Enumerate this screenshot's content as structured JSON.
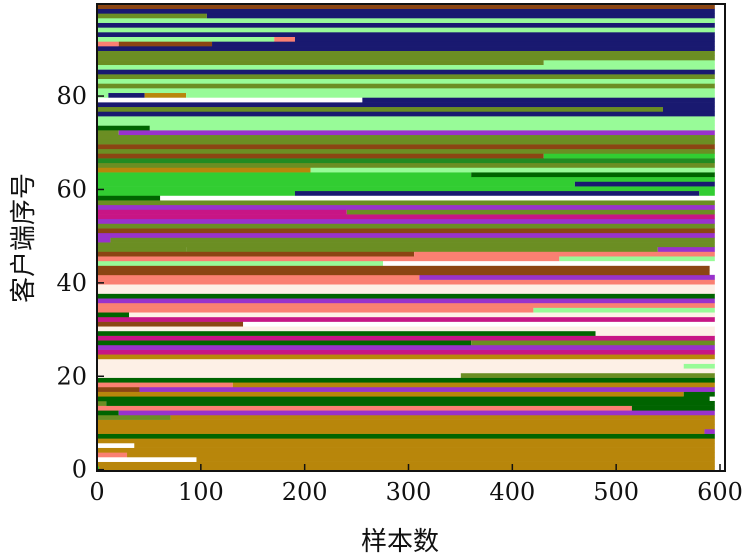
{
  "chart_data": {
    "type": "bar",
    "orientation": "horizontal-stacked",
    "title": "",
    "xlabel": "样本数",
    "ylabel": "客户端序号",
    "xlim": [
      0,
      600
    ],
    "ylim": [
      0,
      100
    ],
    "x_ticks": [
      "0",
      "100",
      "200",
      "300",
      "400",
      "500",
      "600"
    ],
    "y_ticks": [
      "0",
      "20",
      "40",
      "60",
      "80"
    ],
    "x_tick_values": [
      0,
      100,
      200,
      300,
      400,
      500,
      600
    ],
    "y_tick_values": [
      0,
      20,
      40,
      60,
      80
    ],
    "grid": false,
    "legend": "none",
    "colors": {
      "goldenrod": "#b8860b",
      "olive": "#6b8e23",
      "lightgreen": "#98fb98",
      "lime": "#32cd32",
      "darkgreen": "#006400",
      "navy": "#191970",
      "salmon": "#fa8072",
      "seashell": "#fdf0e6",
      "brown": "#8b4513",
      "purple": "#9932cc",
      "magenta": "#c71585",
      "white": "#ffffff",
      "forestgreen": "#228b22"
    },
    "clients": [
      {
        "id": 0,
        "segments": [
          {
            "end": 1,
            "color": "lime"
          },
          {
            "end": 595,
            "color": "goldenrod"
          }
        ]
      },
      {
        "id": 1,
        "segments": [
          {
            "end": 595,
            "color": "goldenrod"
          }
        ]
      },
      {
        "id": 2,
        "segments": [
          {
            "end": 95,
            "color": "white"
          },
          {
            "end": 595,
            "color": "goldenrod"
          }
        ]
      },
      {
        "id": 3,
        "segments": [
          {
            "end": 28,
            "color": "salmon"
          },
          {
            "end": 595,
            "color": "goldenrod"
          }
        ]
      },
      {
        "id": 4,
        "segments": [
          {
            "end": 595,
            "color": "goldenrod"
          }
        ]
      },
      {
        "id": 5,
        "segments": [
          {
            "end": 35,
            "color": "white"
          },
          {
            "end": 595,
            "color": "goldenrod"
          }
        ]
      },
      {
        "id": 6,
        "segments": [
          {
            "end": 595,
            "color": "goldenrod"
          }
        ]
      },
      {
        "id": 7,
        "segments": [
          {
            "end": 595,
            "color": "darkgreen"
          }
        ]
      },
      {
        "id": 8,
        "segments": [
          {
            "end": 585,
            "color": "goldenrod"
          },
          {
            "end": 595,
            "color": "purple"
          }
        ]
      },
      {
        "id": 9,
        "segments": [
          {
            "end": 595,
            "color": "goldenrod"
          }
        ]
      },
      {
        "id": 10,
        "segments": [
          {
            "end": 595,
            "color": "goldenrod"
          }
        ]
      },
      {
        "id": 11,
        "segments": [
          {
            "end": 70,
            "color": "olive"
          },
          {
            "end": 595,
            "color": "goldenrod"
          }
        ]
      },
      {
        "id": 12,
        "segments": [
          {
            "end": 20,
            "color": "darkgreen"
          },
          {
            "end": 595,
            "color": "purple"
          }
        ]
      },
      {
        "id": 13,
        "segments": [
          {
            "end": 515,
            "color": "salmon"
          },
          {
            "end": 595,
            "color": "darkgreen"
          }
        ]
      },
      {
        "id": 14,
        "segments": [
          {
            "end": 8,
            "color": "olive"
          },
          {
            "end": 595,
            "color": "darkgreen"
          }
        ]
      },
      {
        "id": 15,
        "segments": [
          {
            "end": 590,
            "color": "darkgreen"
          }
        ]
      },
      {
        "id": 16,
        "segments": [
          {
            "end": 565,
            "color": "goldenrod"
          },
          {
            "end": 595,
            "color": "darkgreen"
          }
        ]
      },
      {
        "id": 17,
        "segments": [
          {
            "end": 40,
            "color": "brown"
          },
          {
            "end": 595,
            "color": "purple"
          }
        ]
      },
      {
        "id": 18,
        "segments": [
          {
            "end": 130,
            "color": "salmon"
          },
          {
            "end": 595,
            "color": "goldenrod"
          }
        ]
      },
      {
        "id": 19,
        "segments": [
          {
            "end": 595,
            "color": "darkgreen"
          }
        ]
      },
      {
        "id": 20,
        "segments": [
          {
            "end": 350,
            "color": "seashell"
          },
          {
            "end": 595,
            "color": "olive"
          }
        ]
      },
      {
        "id": 21,
        "segments": [
          {
            "end": 595,
            "color": "seashell"
          }
        ]
      },
      {
        "id": 22,
        "segments": [
          {
            "end": 565,
            "color": "seashell"
          },
          {
            "end": 595,
            "color": "lightgreen"
          }
        ]
      },
      {
        "id": 23,
        "segments": [
          {
            "end": 595,
            "color": "seashell"
          }
        ]
      },
      {
        "id": 24,
        "segments": [
          {
            "end": 595,
            "color": "goldenrod"
          }
        ]
      },
      {
        "id": 25,
        "segments": [
          {
            "end": 595,
            "color": "magenta"
          }
        ]
      },
      {
        "id": 26,
        "segments": [
          {
            "end": 595,
            "color": "purple"
          }
        ]
      },
      {
        "id": 27,
        "segments": [
          {
            "end": 360,
            "color": "darkgreen"
          },
          {
            "end": 595,
            "color": "olive"
          }
        ]
      },
      {
        "id": 28,
        "segments": [
          {
            "end": 595,
            "color": "magenta"
          }
        ]
      },
      {
        "id": 29,
        "segments": [
          {
            "end": 480,
            "color": "darkgreen"
          },
          {
            "end": 595,
            "color": "seashell"
          }
        ]
      },
      {
        "id": 30,
        "segments": [
          {
            "end": 595,
            "color": "seashell"
          }
        ]
      },
      {
        "id": 31,
        "segments": [
          {
            "end": 140,
            "color": "brown"
          },
          {
            "end": 595,
            "color": "white"
          }
        ]
      },
      {
        "id": 32,
        "segments": [
          {
            "end": 595,
            "color": "magenta"
          }
        ]
      },
      {
        "id": 33,
        "segments": [
          {
            "end": 30,
            "color": "darkgreen"
          },
          {
            "end": 595,
            "color": "seashell"
          }
        ]
      },
      {
        "id": 34,
        "segments": [
          {
            "end": 420,
            "color": "salmon"
          },
          {
            "end": 595,
            "color": "lightgreen"
          }
        ]
      },
      {
        "id": 35,
        "segments": [
          {
            "end": 595,
            "color": "salmon"
          }
        ]
      },
      {
        "id": 36,
        "segments": [
          {
            "end": 595,
            "color": "purple"
          }
        ]
      },
      {
        "id": 37,
        "segments": [
          {
            "end": 595,
            "color": "darkgreen"
          }
        ]
      },
      {
        "id": 38,
        "segments": [
          {
            "end": 595,
            "color": "seashell"
          }
        ]
      },
      {
        "id": 39,
        "segments": [
          {
            "end": 595,
            "color": "seashell"
          }
        ]
      },
      {
        "id": 40,
        "segments": [
          {
            "end": 595,
            "color": "salmon"
          }
        ]
      },
      {
        "id": 41,
        "segments": [
          {
            "end": 310,
            "color": "salmon"
          },
          {
            "end": 595,
            "color": "purple"
          }
        ]
      },
      {
        "id": 42,
        "segments": [
          {
            "end": 590,
            "color": "brown"
          }
        ]
      },
      {
        "id": 43,
        "segments": [
          {
            "end": 590,
            "color": "brown"
          }
        ]
      },
      {
        "id": 44,
        "segments": [
          {
            "end": 275,
            "color": "lightgreen"
          },
          {
            "end": 595,
            "color": "white"
          }
        ]
      },
      {
        "id": 45,
        "segments": [
          {
            "end": 445,
            "color": "salmon"
          },
          {
            "end": 595,
            "color": "lightgreen"
          }
        ]
      },
      {
        "id": 46,
        "segments": [
          {
            "end": 305,
            "color": "brown"
          },
          {
            "end": 595,
            "color": "salmon"
          }
        ]
      },
      {
        "id": 47,
        "segments": [
          {
            "end": 85,
            "color": "olive"
          },
          {
            "end": 540,
            "color": "olive"
          },
          {
            "end": 595,
            "color": "purple"
          }
        ]
      },
      {
        "id": 48,
        "segments": [
          {
            "end": 595,
            "color": "olive"
          }
        ]
      },
      {
        "id": 49,
        "segments": [
          {
            "end": 12,
            "color": "purple"
          },
          {
            "end": 595,
            "color": "olive"
          }
        ]
      },
      {
        "id": 50,
        "segments": [
          {
            "end": 595,
            "color": "purple"
          }
        ]
      },
      {
        "id": 51,
        "segments": [
          {
            "end": 595,
            "color": "brown"
          }
        ]
      },
      {
        "id": 52,
        "segments": [
          {
            "end": 595,
            "color": "olive"
          }
        ]
      },
      {
        "id": 53,
        "segments": [
          {
            "end": 595,
            "color": "purple"
          }
        ]
      },
      {
        "id": 54,
        "segments": [
          {
            "end": 595,
            "color": "magenta"
          }
        ]
      },
      {
        "id": 55,
        "segments": [
          {
            "end": 240,
            "color": "magenta"
          },
          {
            "end": 595,
            "color": "olive"
          }
        ]
      },
      {
        "id": 56,
        "segments": [
          {
            "end": 595,
            "color": "purple"
          }
        ]
      },
      {
        "id": 57,
        "segments": [
          {
            "end": 595,
            "color": "olive"
          }
        ]
      },
      {
        "id": 58,
        "segments": [
          {
            "end": 60,
            "color": "darkgreen"
          },
          {
            "end": 595,
            "color": "white"
          }
        ]
      },
      {
        "id": 59,
        "segments": [
          {
            "end": 190,
            "color": "lime"
          },
          {
            "end": 580,
            "color": "navy"
          },
          {
            "end": 595,
            "color": "lime"
          }
        ]
      },
      {
        "id": 60,
        "segments": [
          {
            "end": 595,
            "color": "lime"
          }
        ]
      },
      {
        "id": 61,
        "segments": [
          {
            "end": 460,
            "color": "lime"
          },
          {
            "end": 595,
            "color": "navy"
          }
        ]
      },
      {
        "id": 62,
        "segments": [
          {
            "end": 595,
            "color": "lime"
          }
        ]
      },
      {
        "id": 63,
        "segments": [
          {
            "end": 360,
            "color": "lime"
          },
          {
            "end": 595,
            "color": "darkgreen"
          }
        ]
      },
      {
        "id": 64,
        "segments": [
          {
            "end": 205,
            "color": "goldenrod"
          },
          {
            "end": 595,
            "color": "lightgreen"
          }
        ]
      },
      {
        "id": 65,
        "segments": [
          {
            "end": 595,
            "color": "olive"
          }
        ]
      },
      {
        "id": 66,
        "segments": [
          {
            "end": 595,
            "color": "forestgreen"
          }
        ]
      },
      {
        "id": 67,
        "segments": [
          {
            "end": 430,
            "color": "brown"
          },
          {
            "end": 595,
            "color": "lime"
          }
        ]
      },
      {
        "id": 68,
        "segments": [
          {
            "end": 595,
            "color": "olive"
          }
        ]
      },
      {
        "id": 69,
        "segments": [
          {
            "end": 595,
            "color": "brown"
          }
        ]
      },
      {
        "id": 70,
        "segments": [
          {
            "end": 595,
            "color": "olive"
          }
        ]
      },
      {
        "id": 71,
        "segments": [
          {
            "end": 595,
            "color": "olive"
          }
        ]
      },
      {
        "id": 72,
        "segments": [
          {
            "end": 20,
            "color": "olive"
          },
          {
            "end": 595,
            "color": "purple"
          }
        ]
      },
      {
        "id": 73,
        "segments": [
          {
            "end": 50,
            "color": "darkgreen"
          },
          {
            "end": 595,
            "color": "lightgreen"
          }
        ]
      },
      {
        "id": 74,
        "segments": [
          {
            "end": 595,
            "color": "lightgreen"
          }
        ]
      },
      {
        "id": 75,
        "segments": [
          {
            "end": 595,
            "color": "lightgreen"
          }
        ]
      },
      {
        "id": 76,
        "segments": [
          {
            "end": 595,
            "color": "navy"
          }
        ]
      },
      {
        "id": 77,
        "segments": [
          {
            "end": 545,
            "color": "olive"
          },
          {
            "end": 595,
            "color": "navy"
          }
        ]
      },
      {
        "id": 78,
        "segments": [
          {
            "end": 595,
            "color": "navy"
          }
        ]
      },
      {
        "id": 79,
        "segments": [
          {
            "end": 255,
            "color": "white"
          },
          {
            "end": 595,
            "color": "navy"
          }
        ]
      },
      {
        "id": 80,
        "segments": [
          {
            "end": 10,
            "color": "lightgreen"
          },
          {
            "end": 45,
            "color": "navy"
          },
          {
            "end": 85,
            "color": "goldenrod"
          },
          {
            "end": 595,
            "color": "lightgreen"
          }
        ]
      },
      {
        "id": 81,
        "segments": [
          {
            "end": 595,
            "color": "lightgreen"
          }
        ]
      },
      {
        "id": 82,
        "segments": [
          {
            "end": 595,
            "color": "olive"
          }
        ]
      },
      {
        "id": 83,
        "segments": [
          {
            "end": 595,
            "color": "lightgreen"
          }
        ]
      },
      {
        "id": 84,
        "segments": [
          {
            "end": 595,
            "color": "olive"
          }
        ]
      },
      {
        "id": 85,
        "segments": [
          {
            "end": 595,
            "color": "navy"
          }
        ]
      },
      {
        "id": 86,
        "segments": [
          {
            "end": 595,
            "color": "lightgreen"
          }
        ]
      },
      {
        "id": 87,
        "segments": [
          {
            "end": 430,
            "color": "olive"
          },
          {
            "end": 595,
            "color": "lightgreen"
          }
        ]
      },
      {
        "id": 88,
        "segments": [
          {
            "end": 595,
            "color": "olive"
          }
        ]
      },
      {
        "id": 89,
        "segments": [
          {
            "end": 595,
            "color": "olive"
          }
        ]
      },
      {
        "id": 90,
        "segments": [
          {
            "end": 595,
            "color": "navy"
          }
        ]
      },
      {
        "id": 91,
        "segments": [
          {
            "end": 20,
            "color": "salmon"
          },
          {
            "end": 110,
            "color": "brown"
          },
          {
            "end": 595,
            "color": "navy"
          }
        ]
      },
      {
        "id": 92,
        "segments": [
          {
            "end": 170,
            "color": "lightgreen"
          },
          {
            "end": 190,
            "color": "salmon"
          },
          {
            "end": 595,
            "color": "navy"
          }
        ]
      },
      {
        "id": 93,
        "segments": [
          {
            "end": 595,
            "color": "navy"
          }
        ]
      },
      {
        "id": 94,
        "segments": [
          {
            "end": 595,
            "color": "lightgreen"
          }
        ]
      },
      {
        "id": 95,
        "segments": [
          {
            "end": 595,
            "color": "navy"
          }
        ]
      },
      {
        "id": 96,
        "segments": [
          {
            "end": 595,
            "color": "lightgreen"
          }
        ]
      },
      {
        "id": 97,
        "segments": [
          {
            "end": 105,
            "color": "olive"
          },
          {
            "end": 595,
            "color": "navy"
          }
        ]
      },
      {
        "id": 98,
        "segments": [
          {
            "end": 595,
            "color": "navy"
          }
        ]
      },
      {
        "id": 99,
        "segments": [
          {
            "end": 595,
            "color": "brown"
          }
        ]
      }
    ]
  }
}
